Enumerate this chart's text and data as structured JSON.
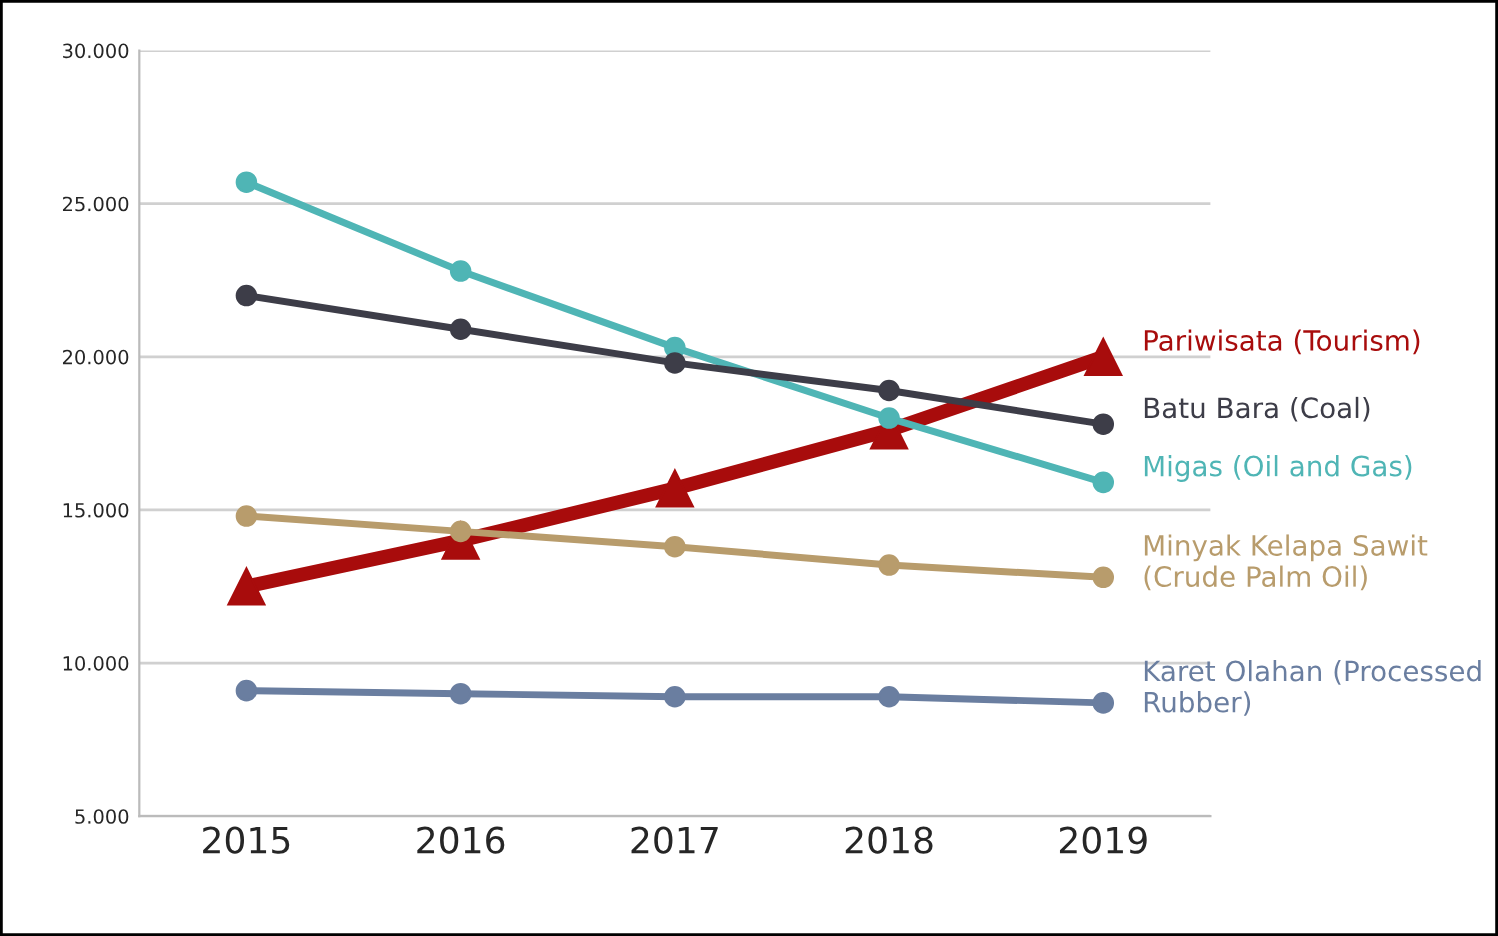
{
  "chart_data": {
    "type": "line",
    "categories": [
      "2015",
      "2016",
      "2017",
      "2018",
      "2019"
    ],
    "series": [
      {
        "name": "Migas (Oil and Gas)",
        "color": "#4fb5b5",
        "marker": "circle",
        "values": [
          25700,
          22800,
          20300,
          18000,
          15900
        ]
      },
      {
        "name": "Batu Bara (Coal)",
        "color": "#3d3d48",
        "marker": "circle",
        "values": [
          22000,
          20900,
          19800,
          18900,
          17800
        ]
      },
      {
        "name": "Minyak Kelapa Sawit\n(Crude Palm Oil)",
        "color": "#b89c6c",
        "marker": "circle",
        "values": [
          14800,
          14300,
          13800,
          13200,
          12800
        ]
      },
      {
        "name": "Karet Olahan (Processed\nRubber)",
        "color": "#6a7ea0",
        "marker": "circle",
        "values": [
          9100,
          9000,
          8900,
          8900,
          8700
        ]
      },
      {
        "name": "Pariwisata (Tourism)",
        "color": "#a80c0c",
        "marker": "triangle",
        "values": [
          12500,
          14000,
          15700,
          17600,
          20000
        ]
      }
    ],
    "ylim": [
      5000,
      30000
    ],
    "yticks": [
      {
        "value": 5000,
        "label": "5.000"
      },
      {
        "value": 10000,
        "label": "10.000"
      },
      {
        "value": 15000,
        "label": "15.000"
      },
      {
        "value": 20000,
        "label": "20.000"
      },
      {
        "value": 25000,
        "label": "25.000"
      },
      {
        "value": 30000,
        "label": "30.000"
      }
    ],
    "grid": "y",
    "line_style": "solid"
  }
}
